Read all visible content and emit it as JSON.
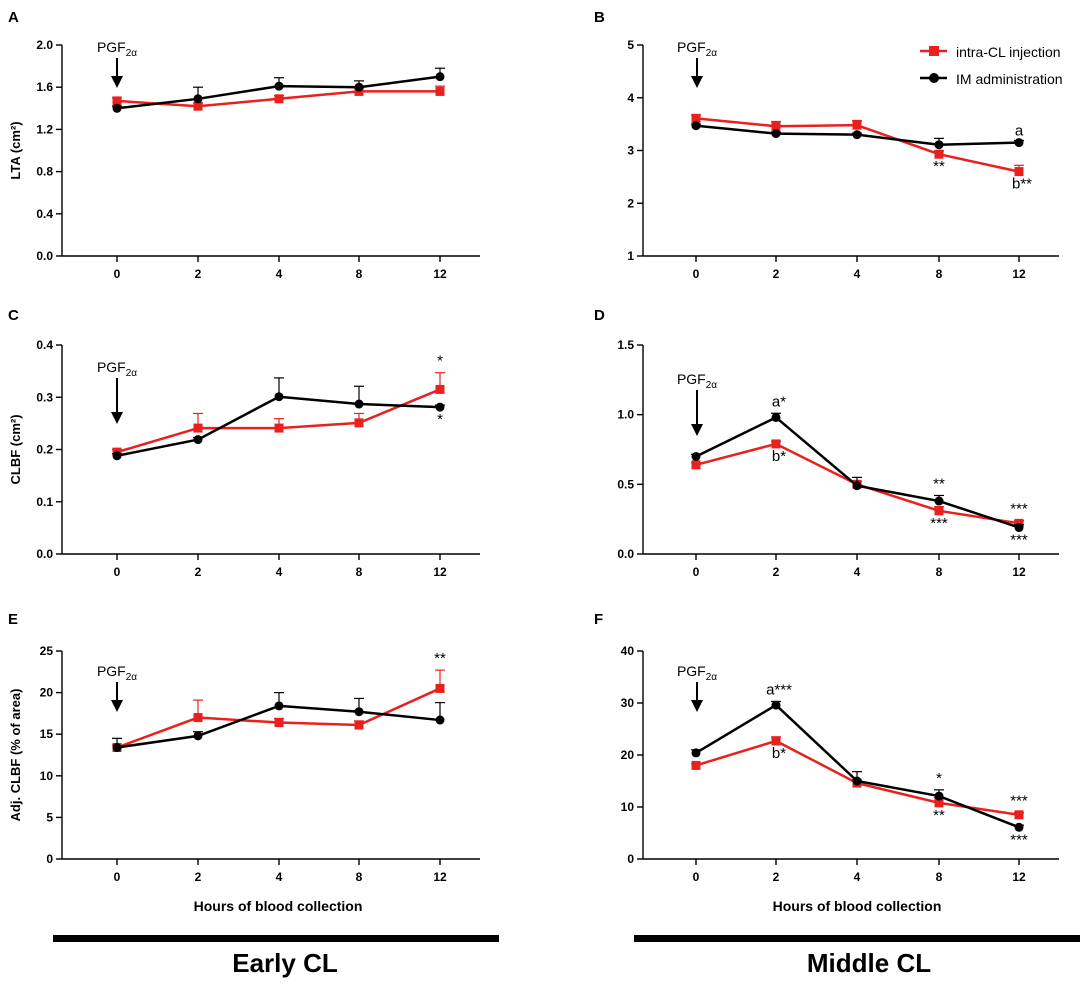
{
  "colors": {
    "intra": "#e8211f",
    "im": "#000000"
  },
  "legend": {
    "intra_label": "intra-CL injection",
    "im_label": "IM administration"
  },
  "arrow_label": {
    "main": "PGF",
    "sub": "2α"
  },
  "xaxis_title": "Hours of blood collection",
  "groups": {
    "early": "Early CL",
    "middle": "Middle CL"
  },
  "chart_data": [
    {
      "panel": "A",
      "type": "line",
      "ylabel": "LTA (cm²)",
      "categories": [
        "0",
        "2",
        "4",
        "8",
        "12"
      ],
      "ylim": [
        0,
        2.0
      ],
      "yticks": [
        "0.0",
        "0.4",
        "0.8",
        "1.2",
        "1.6",
        "2.0"
      ],
      "series": [
        {
          "name": "intra-CL injection",
          "values": [
            1.47,
            1.42,
            1.49,
            1.56,
            1.56
          ],
          "errors": [
            0.03,
            0.03,
            0.03,
            0.03,
            0.05
          ]
        },
        {
          "name": "IM administration",
          "values": [
            1.4,
            1.49,
            1.61,
            1.6,
            1.7
          ],
          "errors": [
            0.02,
            0.11,
            0.08,
            0.06,
            0.08
          ]
        }
      ],
      "annotations": []
    },
    {
      "panel": "B",
      "type": "line",
      "ylabel": "",
      "categories": [
        "0",
        "2",
        "4",
        "8",
        "12"
      ],
      "ylim": [
        1,
        5
      ],
      "yticks": [
        "1",
        "2",
        "3",
        "4",
        "5"
      ],
      "series": [
        {
          "name": "intra-CL injection",
          "values": [
            3.61,
            3.46,
            3.48,
            2.93,
            2.6
          ],
          "errors": [
            0.06,
            0.09,
            0.09,
            0.06,
            0.12
          ]
        },
        {
          "name": "IM administration",
          "values": [
            3.47,
            3.32,
            3.3,
            3.11,
            3.15
          ],
          "errors": [
            0.03,
            0.03,
            0.03,
            0.12,
            0.04
          ]
        }
      ],
      "annotations": [
        {
          "cat": 4,
          "value": 3.15,
          "text": "a",
          "pos": "above"
        },
        {
          "cat": 3,
          "value": 2.93,
          "text": "**",
          "pos": "below"
        },
        {
          "cat": 4,
          "value": 2.6,
          "text": "b**",
          "pos": "below"
        }
      ],
      "legend_visible": true
    },
    {
      "panel": "C",
      "type": "line",
      "ylabel": "CLBF (cm²)",
      "categories": [
        "0",
        "2",
        "4",
        "8",
        "12"
      ],
      "ylim": [
        0,
        0.4
      ],
      "yticks": [
        "0.0",
        "0.1",
        "0.2",
        "0.3",
        "0.4"
      ],
      "series": [
        {
          "name": "intra-CL injection",
          "values": [
            0.195,
            0.241,
            0.241,
            0.251,
            0.315
          ],
          "errors": [
            0.005,
            0.028,
            0.018,
            0.018,
            0.032
          ]
        },
        {
          "name": "IM administration",
          "values": [
            0.188,
            0.219,
            0.301,
            0.287,
            0.281
          ],
          "errors": [
            0.004,
            0.004,
            0.036,
            0.034,
            0.004
          ]
        }
      ],
      "annotations": [
        {
          "cat": 4,
          "value": 0.347,
          "text": "*",
          "pos": "above"
        },
        {
          "cat": 4,
          "value": 0.281,
          "text": "*",
          "pos": "below"
        }
      ]
    },
    {
      "panel": "D",
      "type": "line",
      "ylabel": "",
      "categories": [
        "0",
        "2",
        "4",
        "8",
        "12"
      ],
      "ylim": [
        0,
        1.5
      ],
      "yticks": [
        "0.0",
        "0.5",
        "1.0",
        "1.5"
      ],
      "series": [
        {
          "name": "intra-CL injection",
          "values": [
            0.64,
            0.79,
            0.5,
            0.31,
            0.22
          ],
          "errors": [
            0.015,
            0.02,
            0.02,
            0.03,
            0.02
          ]
        },
        {
          "name": "IM administration",
          "values": [
            0.7,
            0.98,
            0.49,
            0.38,
            0.19
          ],
          "errors": [
            0.015,
            0.03,
            0.06,
            0.04,
            0.02
          ]
        }
      ],
      "annotations": [
        {
          "cat": 1,
          "value": 1.01,
          "text": "a*",
          "pos": "above"
        },
        {
          "cat": 1,
          "value": 0.79,
          "text": "b*",
          "pos": "below"
        },
        {
          "cat": 3,
          "value": 0.42,
          "text": "**",
          "pos": "above"
        },
        {
          "cat": 3,
          "value": 0.31,
          "text": "***",
          "pos": "below"
        },
        {
          "cat": 4,
          "value": 0.24,
          "text": "***",
          "pos": "above"
        },
        {
          "cat": 4,
          "value": 0.19,
          "text": "***",
          "pos": "below"
        }
      ]
    },
    {
      "panel": "E",
      "type": "line",
      "ylabel": "Adj. CLBF (% of area)",
      "categories": [
        "0",
        "2",
        "4",
        "8",
        "12"
      ],
      "ylim": [
        0,
        25
      ],
      "yticks": [
        "0",
        "5",
        "10",
        "15",
        "20",
        "25"
      ],
      "series": [
        {
          "name": "intra-CL injection",
          "values": [
            13.4,
            17.0,
            16.4,
            16.1,
            20.5
          ],
          "errors": [
            0.3,
            2.1,
            0.5,
            0.5,
            2.2
          ]
        },
        {
          "name": "IM administration",
          "values": [
            13.4,
            14.8,
            18.4,
            17.7,
            16.7
          ],
          "errors": [
            1.1,
            0.5,
            1.6,
            1.6,
            2.1
          ]
        }
      ],
      "annotations": [
        {
          "cat": 4,
          "value": 22.7,
          "text": "**",
          "pos": "above"
        }
      ]
    },
    {
      "panel": "F",
      "type": "line",
      "ylabel": "",
      "categories": [
        "0",
        "2",
        "4",
        "8",
        "12"
      ],
      "ylim": [
        0,
        40
      ],
      "yticks": [
        "0",
        "10",
        "20",
        "30",
        "40"
      ],
      "series": [
        {
          "name": "intra-CL injection",
          "values": [
            18.0,
            22.7,
            14.6,
            10.8,
            8.5
          ],
          "errors": [
            0.3,
            0.8,
            0.6,
            1.0,
            0.4
          ]
        },
        {
          "name": "IM administration",
          "values": [
            20.4,
            29.6,
            15.0,
            12.1,
            6.1
          ],
          "errors": [
            0.6,
            0.7,
            1.8,
            1.2,
            0.4
          ]
        }
      ],
      "annotations": [
        {
          "cat": 1,
          "value": 30.3,
          "text": "a***",
          "pos": "above"
        },
        {
          "cat": 1,
          "value": 22.7,
          "text": "b*",
          "pos": "below"
        },
        {
          "cat": 3,
          "value": 13.3,
          "text": "*",
          "pos": "above"
        },
        {
          "cat": 3,
          "value": 10.8,
          "text": "**",
          "pos": "below"
        },
        {
          "cat": 4,
          "value": 8.9,
          "text": "***",
          "pos": "above"
        },
        {
          "cat": 4,
          "value": 6.1,
          "text": "***",
          "pos": "below"
        }
      ]
    }
  ]
}
